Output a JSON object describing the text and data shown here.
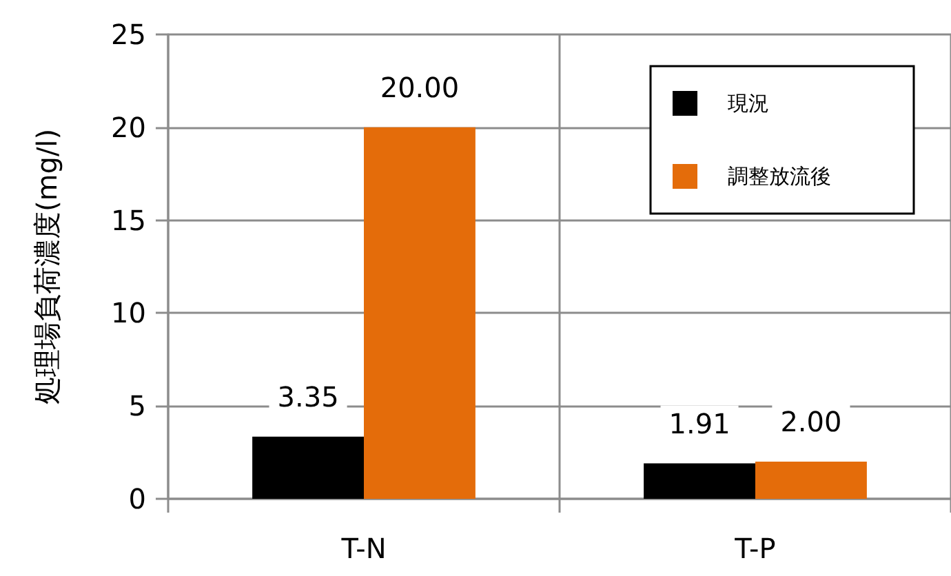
{
  "chart_data": {
    "type": "bar",
    "ylabel": "処理場負荷濃度(mg/l)",
    "categories": [
      "T-N",
      "T-P"
    ],
    "series": [
      {
        "name": "現況",
        "color": "#000000",
        "values": [
          3.35,
          1.91
        ],
        "value_labels": [
          "3.35",
          "1.91"
        ]
      },
      {
        "name": "調整放流後",
        "color": "#e46c0a",
        "values": [
          20.0,
          2.0
        ],
        "value_labels": [
          "20.00",
          "2.00"
        ]
      }
    ],
    "ylim": [
      0,
      25
    ],
    "yticks": [
      0,
      5,
      10,
      15,
      20,
      25
    ],
    "grid": true,
    "legend": "top right"
  }
}
